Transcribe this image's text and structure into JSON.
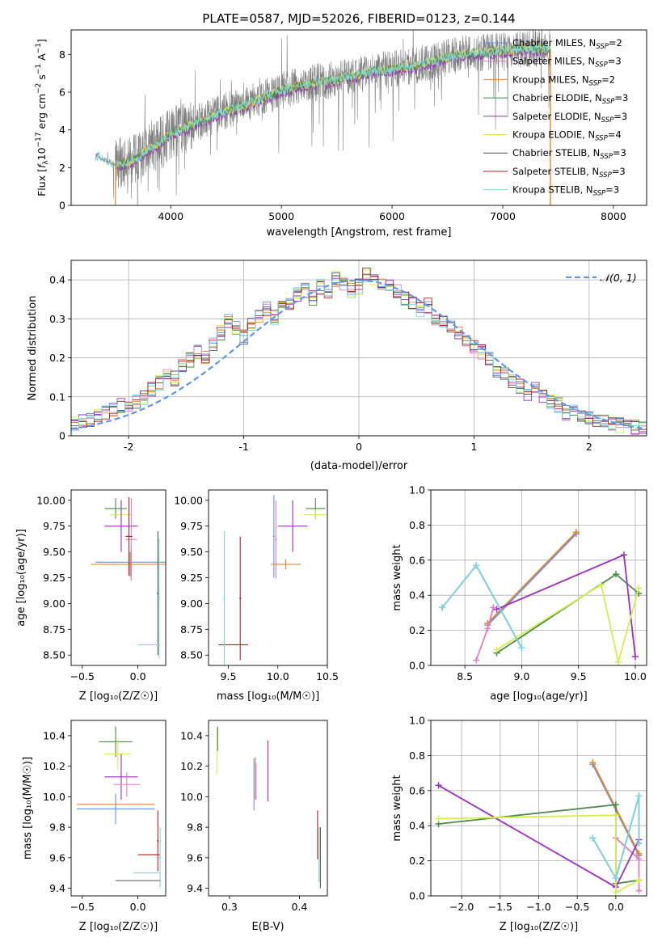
{
  "title": "PLATE=0587, MJD=52026, FIBERID=0123, z=0.144",
  "colors": {
    "chabrier_miles": "#6495ed",
    "salpeter_miles": "#e27dbe",
    "kroupa_miles": "#e0872f",
    "chabrier_elodie": "#4e8a4e",
    "salpeter_elodie": "#9b30c0",
    "kroupa_elodie": "#d6ee4a",
    "chabrier_stelib": "#555555",
    "salpeter_stelib": "#b22222",
    "kroupa_stelib": "#7fd8e0",
    "data": "#808080",
    "normal": "#6495ed"
  },
  "chart_data": [
    {
      "id": "spectrum",
      "type": "line",
      "xlabel": "wavelength [Angstrom, rest frame]",
      "ylabel_parts": [
        "Flux [",
        "f",
        "λ",
        "10",
        "−17",
        " erg cm",
        "−2",
        " s",
        "−1",
        " A",
        "−1",
        "]"
      ],
      "xlim": [
        3100,
        8300
      ],
      "ylim": [
        0,
        9.3
      ],
      "xticks": [
        4000,
        5000,
        6000,
        7000,
        8000
      ],
      "yticks": [
        0,
        2,
        4,
        6,
        8
      ],
      "legend_position": "upper-right",
      "legend": [
        {
          "name": "Chabrier MILES, N",
          "sub": "SSP",
          "tail": "=2",
          "color_key": "chabrier_miles"
        },
        {
          "name": "Salpeter MILES, N",
          "sub": "SSP",
          "tail": "=3",
          "color_key": "salpeter_miles"
        },
        {
          "name": "Kroupa MILES, N",
          "sub": "SSP",
          "tail": "=2",
          "color_key": "kroupa_miles"
        },
        {
          "name": "Chabrier ELODIE, N",
          "sub": "SSP",
          "tail": "=3",
          "color_key": "chabrier_elodie"
        },
        {
          "name": "Salpeter ELODIE, N",
          "sub": "SSP",
          "tail": "=3",
          "color_key": "salpeter_elodie"
        },
        {
          "name": "Kroupa ELODIE, N",
          "sub": "SSP",
          "tail": "=4",
          "color_key": "kroupa_elodie"
        },
        {
          "name": "Chabrier STELIB, N",
          "sub": "SSP",
          "tail": "=3",
          "color_key": "chabrier_stelib"
        },
        {
          "name": "Salpeter STELIB, N",
          "sub": "SSP",
          "tail": "=3",
          "color_key": "salpeter_stelib"
        },
        {
          "name": "Kroupa STELIB, N",
          "sub": "SSP",
          "tail": "=3",
          "color_key": "kroupa_stelib"
        }
      ],
      "continuum": {
        "x": [
          3320,
          3400,
          3500,
          3600,
          3700,
          3800,
          3900,
          4000,
          4100,
          4200,
          4400,
          4600,
          4800,
          5000,
          5200,
          5400,
          5600,
          5800,
          6000,
          6200,
          6400,
          6600,
          6800,
          7000,
          7200,
          7400
        ],
        "y": [
          2.7,
          2.4,
          2.2,
          2.25,
          2.5,
          3.0,
          3.3,
          3.8,
          4.0,
          4.3,
          4.8,
          5.2,
          5.6,
          6.1,
          6.4,
          6.6,
          6.8,
          7.1,
          7.2,
          7.4,
          7.7,
          8.0,
          8.1,
          8.2,
          8.3,
          8.3
        ]
      },
      "models_start": 3500,
      "models_end": 7430
    },
    {
      "id": "residuals",
      "type": "histogram",
      "xlabel": "(data-model)/error",
      "ylabel": "Normed distribution",
      "xlim": [
        -2.5,
        2.5
      ],
      "ylim": [
        0,
        0.45
      ],
      "xticks": [
        -2,
        -1,
        0,
        1,
        2
      ],
      "yticks": [
        0,
        0.1,
        0.2,
        0.3,
        0.4
      ],
      "grid": true,
      "bin_edges_start": -2.5,
      "bin_width": 0.1,
      "base_hist": [
        0.03,
        0.035,
        0.04,
        0.05,
        0.06,
        0.07,
        0.08,
        0.075,
        0.09,
        0.1,
        0.12,
        0.14,
        0.16,
        0.15,
        0.18,
        0.2,
        0.22,
        0.21,
        0.24,
        0.27,
        0.3,
        0.28,
        0.26,
        0.29,
        0.31,
        0.33,
        0.31,
        0.35,
        0.34,
        0.37,
        0.38,
        0.36,
        0.39,
        0.37,
        0.41,
        0.4,
        0.38,
        0.39,
        0.42,
        0.41,
        0.4,
        0.39,
        0.38,
        0.36,
        0.35,
        0.33,
        0.34,
        0.31,
        0.3,
        0.28,
        0.27,
        0.25,
        0.23,
        0.22,
        0.2,
        0.17,
        0.16,
        0.14,
        0.13,
        0.11,
        0.12,
        0.1,
        0.09,
        0.08,
        0.06,
        0.07,
        0.055,
        0.05,
        0.04,
        0.035,
        0.03,
        0.028,
        0.025,
        0.022,
        0.02
      ],
      "legend_label": "𝒩(0, 1)",
      "legend_position": "upper-right"
    },
    {
      "id": "age_vs_Z",
      "type": "errorbar",
      "xlabel": "Z [log₁₀(Z/Z☉)]",
      "ylabel": "age  [log₁₀(age/yr)]",
      "xlim": [
        -0.6,
        0.25
      ],
      "ylim": [
        8.4,
        10.1
      ],
      "xticks": [
        -0.5,
        0.0
      ],
      "xtick_labels": [
        "−0.5",
        "0.0"
      ],
      "yticks": [
        8.5,
        8.75,
        9.0,
        9.25,
        9.5,
        9.75,
        10.0
      ],
      "ytick_labels": [
        "8.50",
        "8.75",
        "9.00",
        "9.25",
        "9.50",
        "9.75",
        "10.00"
      ],
      "points": [
        {
          "x": -0.2,
          "y": 9.92,
          "xerr": 0.1,
          "yerr": 0.1,
          "color_key": "chabrier_elodie"
        },
        {
          "x": -0.15,
          "y": 9.86,
          "xerr": 0.1,
          "yerr": 0.15,
          "color_key": "kroupa_elodie"
        },
        {
          "x": -0.15,
          "y": 9.75,
          "xerr": 0.15,
          "yerr": 0.25,
          "color_key": "salpeter_elodie"
        },
        {
          "x": -0.06,
          "y": 9.4,
          "xerr": 0.32,
          "yerr": 0.15,
          "color_key": "chabrier_miles"
        },
        {
          "x": -0.07,
          "y": 9.38,
          "xerr": 0.35,
          "yerr": 0.12,
          "color_key": "kroupa_miles"
        },
        {
          "x": -0.06,
          "y": 9.62,
          "xerr": 0.05,
          "yerr": 0.4,
          "color_key": "salpeter_miles"
        },
        {
          "x": -0.08,
          "y": 9.65,
          "xerr": 0.03,
          "yerr": 0.38,
          "color_key": "salpeter_stelib"
        },
        {
          "x": 0.18,
          "y": 9.1,
          "xerr": 0.01,
          "yerr": 0.6,
          "color_key": "chabrier_stelib"
        },
        {
          "x": 0.1,
          "y": 8.6,
          "xerr": 0.1,
          "yerr": 0.0,
          "color_key": "kroupa_stelib"
        },
        {
          "x": 0.19,
          "y": 9.05,
          "xerr": 0.01,
          "yerr": 0.58,
          "color_key": "kroupa_stelib"
        }
      ]
    },
    {
      "id": "age_vs_mass",
      "type": "errorbar",
      "xlabel": "mass [log₁₀(M/M☉)]",
      "ylabel": "",
      "xlim": [
        9.3,
        10.5
      ],
      "ylim": [
        8.4,
        10.1
      ],
      "xticks": [
        9.5,
        10.0,
        10.5
      ],
      "xtick_labels": [
        "9.5",
        "10.0",
        "10.5"
      ],
      "yticks": [
        8.5,
        8.75,
        9.0,
        9.25,
        9.5,
        9.75,
        10.0
      ],
      "ytick_labels": [
        "8.50",
        "8.75",
        "9.00",
        "9.25",
        "9.50",
        "9.75",
        "10.00"
      ],
      "points": [
        {
          "x": 10.38,
          "y": 9.92,
          "xerr": 0.1,
          "yerr": 0.1,
          "color_key": "chabrier_elodie"
        },
        {
          "x": 10.38,
          "y": 9.86,
          "xerr": 0.12,
          "yerr": 0.05,
          "color_key": "kroupa_elodie"
        },
        {
          "x": 10.15,
          "y": 9.75,
          "xerr": 0.15,
          "yerr": 0.25,
          "color_key": "salpeter_elodie"
        },
        {
          "x": 9.96,
          "y": 9.65,
          "xerr": 0.01,
          "yerr": 0.4,
          "color_key": "chabrier_miles"
        },
        {
          "x": 9.98,
          "y": 9.62,
          "xerr": 0.01,
          "yerr": 0.38,
          "color_key": "salpeter_miles"
        },
        {
          "x": 10.08,
          "y": 9.38,
          "xerr": 0.15,
          "yerr": 0.05,
          "color_key": "kroupa_miles"
        },
        {
          "x": 9.62,
          "y": 9.05,
          "xerr": 0.01,
          "yerr": 0.6,
          "color_key": "salpeter_stelib"
        },
        {
          "x": 9.55,
          "y": 8.6,
          "xerr": 0.15,
          "yerr": 0.0,
          "color_key": "salpeter_stelib"
        },
        {
          "x": 9.46,
          "y": 9.05,
          "xerr": 0.01,
          "yerr": 0.65,
          "color_key": "kroupa_stelib"
        }
      ]
    },
    {
      "id": "weight_vs_age",
      "type": "line",
      "xlabel": "age  [log₁₀(age/yr)]",
      "ylabel": "mass weight",
      "xlim": [
        8.2,
        10.1
      ],
      "ylim": [
        0,
        1.0
      ],
      "xticks": [
        8.5,
        9.0,
        9.5,
        10.0
      ],
      "xtick_labels": [
        "8.5",
        "9.0",
        "9.5",
        "10.0"
      ],
      "yticks": [
        0,
        0.2,
        0.4,
        0.6,
        0.8,
        1.0
      ],
      "ytick_labels": [
        "0.0",
        "0.2",
        "0.4",
        "0.6",
        "0.8",
        "1.0"
      ],
      "grid": true,
      "series": [
        {
          "color_key": "chabrier_miles",
          "x": [
            8.7,
            9.48
          ],
          "y": [
            0.23,
            0.75
          ]
        },
        {
          "color_key": "kroupa_miles",
          "x": [
            8.7,
            9.48
          ],
          "y": [
            0.24,
            0.76
          ]
        },
        {
          "color_key": "salpeter_miles",
          "x": [
            8.6,
            8.7,
            8.75
          ],
          "y": [
            0.03,
            0.21,
            0.33
          ]
        },
        {
          "color_key": "chabrier_elodie",
          "x": [
            8.78,
            9.83,
            10.03
          ],
          "y": [
            0.07,
            0.52,
            0.41
          ]
        },
        {
          "color_key": "salpeter_elodie",
          "x": [
            8.78,
            9.9,
            10.0
          ],
          "y": [
            0.32,
            0.63,
            0.05
          ]
        },
        {
          "color_key": "kroupa_elodie",
          "x": [
            8.78,
            9.7,
            9.85,
            10.03
          ],
          "y": [
            0.09,
            0.46,
            0.02,
            0.44
          ]
        },
        {
          "color_key": "chabrier_stelib",
          "x": [
            8.3,
            8.6,
            9.0
          ],
          "y": [
            0.33,
            0.57,
            0.1
          ]
        },
        {
          "color_key": "kroupa_stelib",
          "x": [
            8.3,
            8.6,
            9.0
          ],
          "y": [
            0.33,
            0.57,
            0.1
          ]
        }
      ]
    },
    {
      "id": "mass_vs_Z",
      "type": "errorbar",
      "xlabel": "Z [log₁₀(Z/Z☉)]",
      "ylabel": "mass [log₁₀(M/M☉)]",
      "xlim": [
        -0.6,
        0.25
      ],
      "ylim": [
        9.35,
        10.5
      ],
      "xticks": [
        -0.5,
        0.0
      ],
      "xtick_labels": [
        "−0.5",
        "0.0"
      ],
      "yticks": [
        9.4,
        9.6,
        9.8,
        10.0,
        10.2,
        10.4
      ],
      "ytick_labels": [
        "9.4",
        "9.6",
        "9.8",
        "10.0",
        "10.2",
        "10.4"
      ],
      "points": [
        {
          "x": -0.2,
          "y": 10.36,
          "xerr": 0.15,
          "yerr": 0.1,
          "color_key": "chabrier_elodie"
        },
        {
          "x": -0.18,
          "y": 10.28,
          "xerr": 0.12,
          "yerr": 0.1,
          "color_key": "kroupa_elodie"
        },
        {
          "x": -0.15,
          "y": 10.13,
          "xerr": 0.15,
          "yerr": 0.15,
          "color_key": "salpeter_elodie"
        },
        {
          "x": -0.1,
          "y": 10.08,
          "xerr": 0.12,
          "yerr": 0.08,
          "color_key": "salpeter_miles"
        },
        {
          "x": -0.2,
          "y": 9.95,
          "xerr": 0.35,
          "yerr": 0.05,
          "color_key": "kroupa_miles"
        },
        {
          "x": -0.2,
          "y": 9.92,
          "xerr": 0.35,
          "yerr": 0.1,
          "color_key": "chabrier_miles"
        },
        {
          "x": 0.18,
          "y": 9.71,
          "xerr": 0.01,
          "yerr": 0.2,
          "color_key": "salpeter_stelib"
        },
        {
          "x": 0.1,
          "y": 9.62,
          "xerr": 0.1,
          "yerr": 0.0,
          "color_key": "salpeter_stelib"
        },
        {
          "x": 0.2,
          "y": 9.6,
          "xerr": 0.01,
          "yerr": 0.2,
          "color_key": "kroupa_stelib"
        },
        {
          "x": 0.08,
          "y": 9.5,
          "xerr": 0.12,
          "yerr": 0.0,
          "color_key": "kroupa_stelib"
        },
        {
          "x": 0.0,
          "y": 9.45,
          "xerr": 0.2,
          "yerr": 0.0,
          "color_key": "chabrier_stelib"
        }
      ]
    },
    {
      "id": "mass_vs_EBV",
      "type": "errorbar",
      "xlabel": "E(B-V)",
      "ylabel": "",
      "xlim": [
        0.27,
        0.44
      ],
      "ylim": [
        9.35,
        10.5
      ],
      "xticks": [
        0.3,
        0.4
      ],
      "xtick_labels": [
        "0.3",
        "0.4"
      ],
      "yticks": [
        9.4,
        9.6,
        9.8,
        10.0,
        10.2,
        10.4
      ],
      "ytick_labels": [
        "9.4",
        "9.6",
        "9.8",
        "10.0",
        "10.2",
        "10.4"
      ],
      "points": [
        {
          "x": 0.282,
          "y": 10.3,
          "xerr": 0.0,
          "yerr": 0.15,
          "color_key": "kroupa_elodie"
        },
        {
          "x": 0.283,
          "y": 10.38,
          "xerr": 0.0,
          "yerr": 0.08,
          "color_key": "chabrier_elodie"
        },
        {
          "x": 0.335,
          "y": 10.08,
          "xerr": 0.0,
          "yerr": 0.17,
          "color_key": "chabrier_miles"
        },
        {
          "x": 0.337,
          "y": 10.12,
          "xerr": 0.0,
          "yerr": 0.14,
          "color_key": "kroupa_miles"
        },
        {
          "x": 0.338,
          "y": 10.1,
          "xerr": 0.0,
          "yerr": 0.12,
          "color_key": "salpeter_miles"
        },
        {
          "x": 0.355,
          "y": 10.17,
          "xerr": 0.0,
          "yerr": 0.2,
          "color_key": "salpeter_elodie"
        },
        {
          "x": 0.426,
          "y": 9.75,
          "xerr": 0.0,
          "yerr": 0.16,
          "color_key": "salpeter_stelib"
        },
        {
          "x": 0.428,
          "y": 9.62,
          "xerr": 0.0,
          "yerr": 0.18,
          "color_key": "kroupa_stelib"
        },
        {
          "x": 0.43,
          "y": 9.6,
          "xerr": 0.0,
          "yerr": 0.2,
          "color_key": "chabrier_stelib"
        }
      ]
    },
    {
      "id": "weight_vs_Z",
      "type": "line",
      "xlabel": "Z [log₁₀(Z/Z☉)]",
      "ylabel": "mass weight",
      "xlim": [
        -2.4,
        0.4
      ],
      "ylim": [
        0,
        1.0
      ],
      "xticks": [
        -2.0,
        -1.5,
        -1.0,
        -0.5,
        0.0
      ],
      "xtick_labels": [
        "−2.0",
        "−1.5",
        "−1.0",
        "−0.5",
        "0.0"
      ],
      "yticks": [
        0,
        0.2,
        0.4,
        0.6,
        0.8,
        1.0
      ],
      "ytick_labels": [
        "0.0",
        "0.2",
        "0.4",
        "0.6",
        "0.8",
        "1.0"
      ],
      "grid": true,
      "series": [
        {
          "color_key": "chabrier_miles",
          "x": [
            -0.3,
            0.3
          ],
          "y": [
            0.75,
            0.23
          ]
        },
        {
          "color_key": "kroupa_miles",
          "x": [
            -0.3,
            0.3
          ],
          "y": [
            0.76,
            0.24
          ]
        },
        {
          "color_key": "salpeter_miles",
          "x": [
            0.0,
            0.3,
            0.3
          ],
          "y": [
            0.33,
            0.21,
            0.03
          ]
        },
        {
          "color_key": "chabrier_elodie",
          "x": [
            -2.3,
            0.0,
            0.0,
            0.3
          ],
          "y": [
            0.41,
            0.52,
            0.07,
            0.09
          ]
        },
        {
          "color_key": "salpeter_elodie",
          "x": [
            -2.3,
            0.0,
            0.3
          ],
          "y": [
            0.63,
            0.05,
            0.32
          ]
        },
        {
          "color_key": "kroupa_elodie",
          "x": [
            -2.3,
            0.0,
            0.0,
            0.3
          ],
          "y": [
            0.44,
            0.46,
            0.02,
            0.09
          ]
        },
        {
          "color_key": "chabrier_stelib",
          "x": [
            -0.3,
            0.0,
            0.3,
            0.3
          ],
          "y": [
            0.33,
            0.1,
            0.57,
            0.3
          ]
        },
        {
          "color_key": "kroupa_stelib",
          "x": [
            -0.3,
            0.0,
            0.3,
            0.3
          ],
          "y": [
            0.33,
            0.1,
            0.57,
            0.3
          ]
        }
      ]
    }
  ]
}
